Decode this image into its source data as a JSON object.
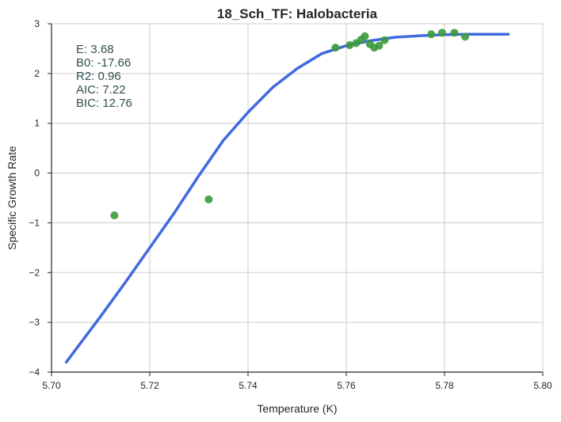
{
  "chart_data": {
    "type": "scatter",
    "title": "18_Sch_TF: Halobacteria",
    "xlabel": "Temperature (K)",
    "ylabel": "Specific Growth Rate",
    "xlim": [
      5.7,
      5.8
    ],
    "ylim": [
      -4,
      3
    ],
    "xticks": [
      5.7,
      5.72,
      5.74,
      5.76,
      5.78,
      5.8
    ],
    "xtick_labels": [
      "5.70",
      "5.72",
      "5.74",
      "5.76",
      "5.78",
      "5.80"
    ],
    "yticks": [
      -4,
      -3,
      -2,
      -1,
      0,
      1,
      2,
      3
    ],
    "ytick_labels": [
      "−4",
      "−3",
      "−2",
      "−1",
      "0",
      "1",
      "2",
      "3"
    ],
    "grid": true,
    "series": [
      {
        "kind": "scatter",
        "color": "#3a9a3a",
        "points": [
          {
            "x": 5.7128,
            "y": -0.85
          },
          {
            "x": 5.732,
            "y": -0.53
          },
          {
            "x": 5.7578,
            "y": 2.52
          },
          {
            "x": 5.7607,
            "y": 2.57
          },
          {
            "x": 5.762,
            "y": 2.61
          },
          {
            "x": 5.763,
            "y": 2.68
          },
          {
            "x": 5.7638,
            "y": 2.75
          },
          {
            "x": 5.7648,
            "y": 2.59
          },
          {
            "x": 5.7657,
            "y": 2.52
          },
          {
            "x": 5.7667,
            "y": 2.56
          },
          {
            "x": 5.7678,
            "y": 2.67
          },
          {
            "x": 5.7773,
            "y": 2.79
          },
          {
            "x": 5.7795,
            "y": 2.82
          },
          {
            "x": 5.782,
            "y": 2.82
          },
          {
            "x": 5.7842,
            "y": 2.74
          }
        ]
      },
      {
        "kind": "line",
        "color": "#4169e1",
        "points": [
          {
            "x": 5.703,
            "y": -3.8
          },
          {
            "x": 5.71,
            "y": -2.88
          },
          {
            "x": 5.715,
            "y": -2.2
          },
          {
            "x": 5.72,
            "y": -1.5
          },
          {
            "x": 5.725,
            "y": -0.8
          },
          {
            "x": 5.73,
            "y": -0.05
          },
          {
            "x": 5.735,
            "y": 0.66
          },
          {
            "x": 5.74,
            "y": 1.22
          },
          {
            "x": 5.745,
            "y": 1.72
          },
          {
            "x": 5.75,
            "y": 2.1
          },
          {
            "x": 5.755,
            "y": 2.4
          },
          {
            "x": 5.76,
            "y": 2.56
          },
          {
            "x": 5.765,
            "y": 2.66
          },
          {
            "x": 5.77,
            "y": 2.73
          },
          {
            "x": 5.775,
            "y": 2.76
          },
          {
            "x": 5.78,
            "y": 2.78
          },
          {
            "x": 5.785,
            "y": 2.79
          },
          {
            "x": 5.793,
            "y": 2.79
          }
        ]
      }
    ],
    "annotations": [
      "E:  3.68",
      "B0:  -17.66",
      "R2:  0.96",
      "AIC: 7.22",
      "BIC: 12.76"
    ],
    "annotation_color": "#2f4f4f"
  }
}
